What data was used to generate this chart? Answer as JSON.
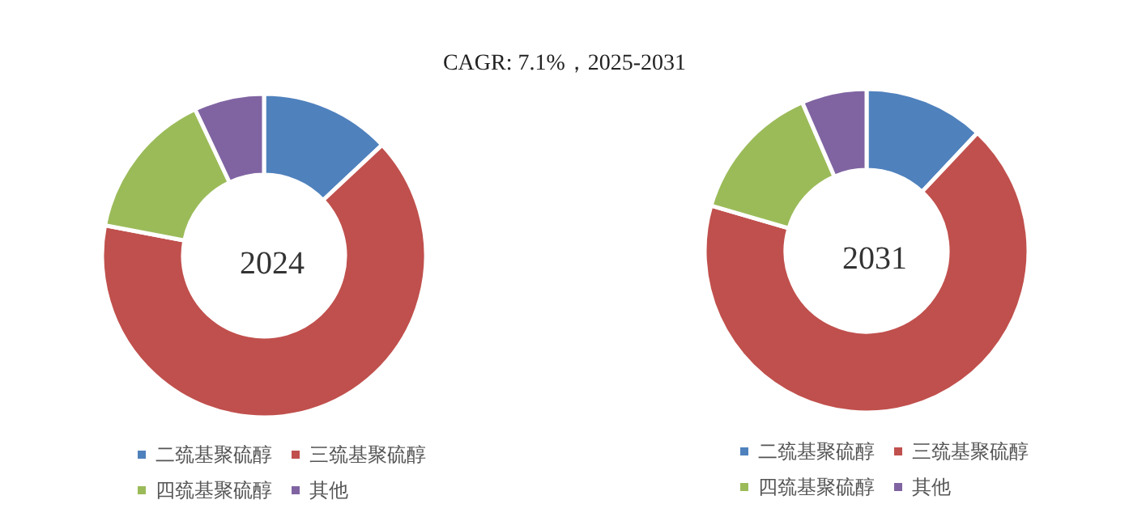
{
  "chart_data": [
    {
      "type": "donut",
      "title": "2024",
      "annotations": [
        "CAGR:  7.1%，2025-2031"
      ],
      "categories": [
        "二巯基聚硫醇",
        "三巯基聚硫醇",
        "四巯基聚硫醇",
        "其他"
      ],
      "values": [
        13,
        65,
        15,
        7
      ],
      "colors": [
        "#4f81bd",
        "#c0504d",
        "#9bbb59",
        "#8064a2"
      ],
      "legend": "bottom"
    },
    {
      "type": "donut",
      "title": "2031",
      "categories": [
        "二巯基聚硫醇",
        "三巯基聚硫醇",
        "四巯基聚硫醇",
        "其他"
      ],
      "values": [
        12,
        67.5,
        14,
        6.5
      ],
      "colors": [
        "#4f81bd",
        "#c0504d",
        "#9bbb59",
        "#8064a2"
      ],
      "legend": "bottom"
    }
  ]
}
